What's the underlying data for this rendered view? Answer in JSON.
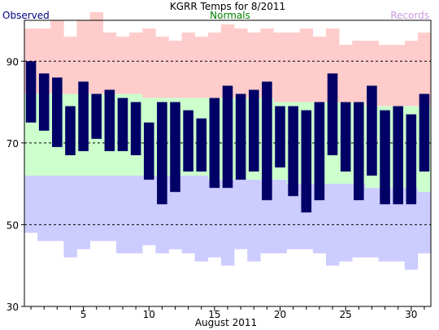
{
  "chart_data": {
    "type": "bar",
    "title": "KGRR Temps for 8/2011",
    "xlabel": "August 2011",
    "ylabel": "",
    "ylim": [
      30,
      100
    ],
    "xlim": [
      0.5,
      31.5
    ],
    "yticks": [
      30,
      50,
      70,
      90
    ],
    "xticks": [
      5,
      10,
      15,
      20,
      25,
      30
    ],
    "legend": {
      "observed": "Observed",
      "normals": "Normals",
      "records": "Records",
      "placement": "top"
    },
    "gridlines": [
      50,
      70,
      90
    ],
    "colors": {
      "observed": "#000066",
      "normals": "#ccffcc",
      "records_high": "#ffcccc",
      "records_low": "#ccccff",
      "observed_label": "#000080",
      "normals_label": "#008000",
      "records_label": "#cc99dd"
    },
    "days": [
      1,
      2,
      3,
      4,
      5,
      6,
      7,
      8,
      9,
      10,
      11,
      12,
      13,
      14,
      15,
      16,
      17,
      18,
      19,
      20,
      21,
      22,
      23,
      24,
      25,
      26,
      27,
      28,
      29,
      30,
      31
    ],
    "series": [
      {
        "name": "Observed",
        "high": [
          90,
          87,
          86,
          79,
          85,
          82,
          83,
          81,
          80,
          75,
          80,
          80,
          78,
          76,
          81,
          84,
          82,
          83,
          85,
          79,
          79,
          78,
          80,
          87,
          80,
          80,
          84,
          78,
          79,
          77,
          82
        ],
        "low": [
          75,
          73,
          69,
          67,
          68,
          71,
          68,
          68,
          67,
          61,
          55,
          58,
          63,
          63,
          59,
          59,
          61,
          63,
          56,
          64,
          57,
          53,
          56,
          67,
          63,
          56,
          62,
          55,
          55,
          55,
          63
        ]
      },
      {
        "name": "Normals",
        "high": [
          82,
          82,
          82,
          82,
          82,
          82,
          82,
          82,
          82,
          81,
          81,
          81,
          81,
          81,
          81,
          81,
          81,
          81,
          81,
          80,
          80,
          80,
          80,
          80,
          80,
          80,
          79,
          79,
          79,
          79,
          79
        ],
        "low": [
          62,
          62,
          62,
          62,
          62,
          62,
          62,
          62,
          62,
          62,
          62,
          62,
          62,
          62,
          61,
          61,
          61,
          61,
          61,
          61,
          60,
          60,
          60,
          60,
          60,
          60,
          59,
          59,
          59,
          59,
          58
        ]
      },
      {
        "name": "Records",
        "high": [
          98,
          98,
          100,
          96,
          100,
          102,
          97,
          96,
          97,
          98,
          96,
          95,
          97,
          96,
          97,
          99,
          98,
          97,
          98,
          97,
          97,
          98,
          96,
          98,
          94,
          95,
          95,
          94,
          94,
          95,
          97
        ],
        "low": [
          48,
          46,
          46,
          42,
          44,
          46,
          46,
          43,
          43,
          45,
          43,
          44,
          43,
          41,
          42,
          40,
          44,
          41,
          43,
          43,
          44,
          44,
          43,
          40,
          41,
          42,
          42,
          41,
          41,
          39,
          43
        ]
      }
    ]
  }
}
